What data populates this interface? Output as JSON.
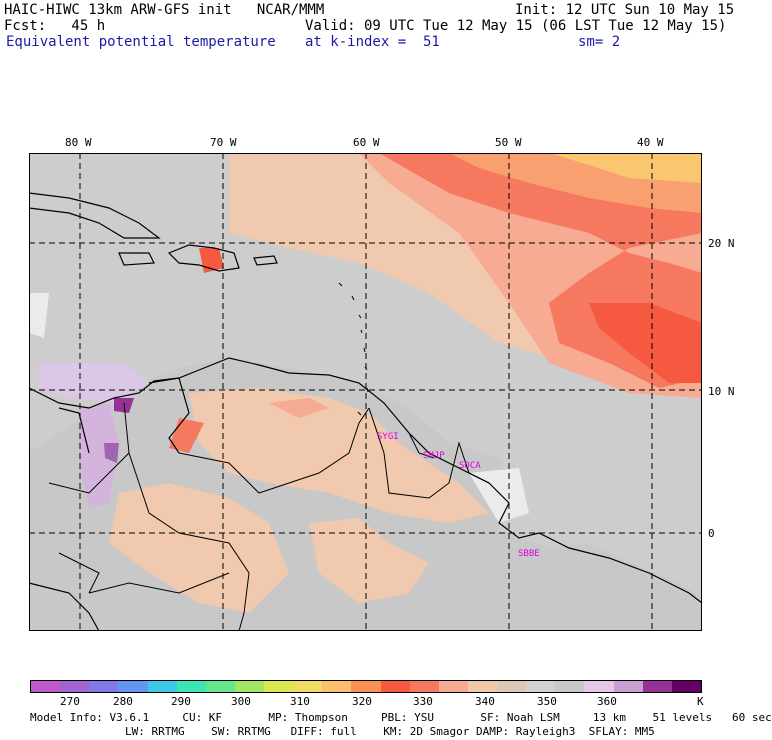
{
  "header": {
    "left1": "HAIC-HIWC 13km ARW-GFS init   NCAR/MMM",
    "left2": "Fcst:   45 h",
    "left3": "Equivalent potential temperature",
    "right1": "Init: 12 UTC Sun 10 May 15",
    "right2": "Valid: 09 UTC Tue 12 May 15 (06 LST Tue 12 May 15)",
    "level": "at k-index =  51",
    "sm": "sm= 2"
  },
  "map": {
    "lon_labels": [
      "80 W",
      "70 W",
      "60 W",
      "50 W",
      "40 W"
    ],
    "lat_labels": [
      "20 N",
      "10 N",
      "0"
    ],
    "stations": [
      "SYGI",
      "SMJP",
      "SOCA",
      "SBBE"
    ],
    "station_color": "#e000e0"
  },
  "colorbar": {
    "colors": [
      "#c05ac8",
      "#a064d2",
      "#8278e6",
      "#6496f0",
      "#3cc8e6",
      "#3ce6b4",
      "#64e68c",
      "#a0e664",
      "#dce650",
      "#f0dc64",
      "#fabe6e",
      "#fa9150",
      "#f55a41",
      "#f5785f",
      "#f5aa91",
      "#f0c8aa",
      "#dcc8b4",
      "#d2d2d2",
      "#c8c8c8",
      "#e6c8e6",
      "#c8a0d2",
      "#963296",
      "#640064"
    ],
    "labels": [
      "270",
      "280",
      "290",
      "300",
      "310",
      "320",
      "330",
      "340",
      "350",
      "360",
      "K"
    ]
  },
  "footer": {
    "line1": "Model Info: V3.6.1     CU: KF       MP: Thompson     PBL: YSU       SF: Noah LSM     13 km    51 levels   60 sec",
    "line2": "LW: RRTMG    SW: RRTMG   DIFF: full    KM: 2D Smagor DAMP: Rayleigh3  SFLAY: MM5"
  }
}
